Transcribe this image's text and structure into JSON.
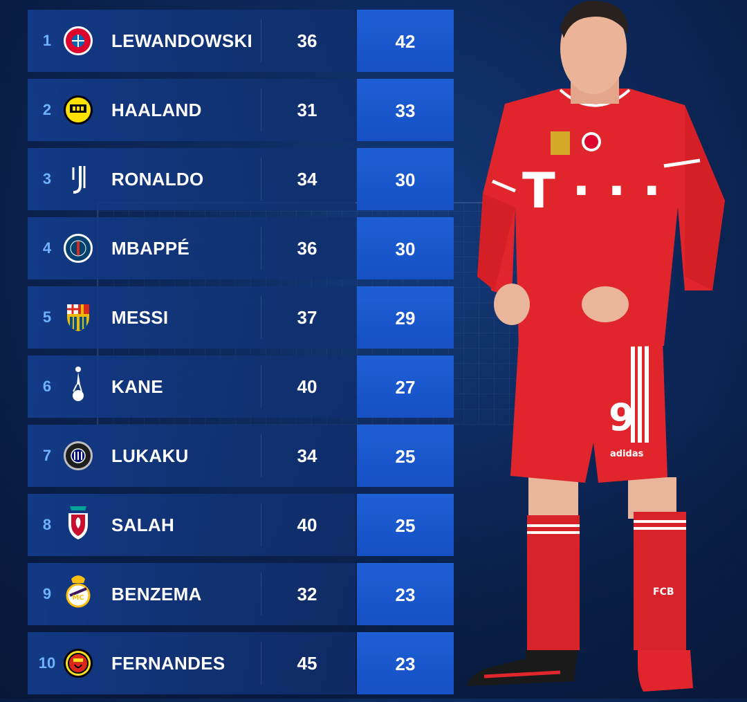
{
  "colors": {
    "rank": "#6fb0ff",
    "goals_box": "#1f5fd6",
    "player_kit": "#e1252d"
  },
  "rows": [
    {
      "rank": "1",
      "crest": "bayern-munich-crest",
      "name": "LEWANDOWSKI",
      "apps": "36",
      "goals": "42"
    },
    {
      "rank": "2",
      "crest": "borussia-dortmund-crest",
      "name": "HAALAND",
      "apps": "31",
      "goals": "33"
    },
    {
      "rank": "3",
      "crest": "juventus-crest",
      "name": "RONALDO",
      "apps": "34",
      "goals": "30"
    },
    {
      "rank": "4",
      "crest": "psg-crest",
      "name": "MBAPPÉ",
      "apps": "36",
      "goals": "30"
    },
    {
      "rank": "5",
      "crest": "barcelona-crest",
      "name": "MESSI",
      "apps": "37",
      "goals": "29"
    },
    {
      "rank": "6",
      "crest": "tottenham-crest",
      "name": "KANE",
      "apps": "40",
      "goals": "27"
    },
    {
      "rank": "7",
      "crest": "inter-milan-crest",
      "name": "LUKAKU",
      "apps": "34",
      "goals": "25"
    },
    {
      "rank": "8",
      "crest": "liverpool-crest",
      "name": "SALAH",
      "apps": "40",
      "goals": "25"
    },
    {
      "rank": "9",
      "crest": "real-madrid-crest",
      "name": "BENZEMA",
      "apps": "32",
      "goals": "23"
    },
    {
      "rank": "10",
      "crest": "manchester-united-crest",
      "name": "FERNANDES",
      "apps": "45",
      "goals": "23"
    }
  ],
  "player": {
    "shirt_number": "9",
    "sponsor": "T · · ·",
    "brand": "adidas",
    "sock_text": "FCB"
  }
}
